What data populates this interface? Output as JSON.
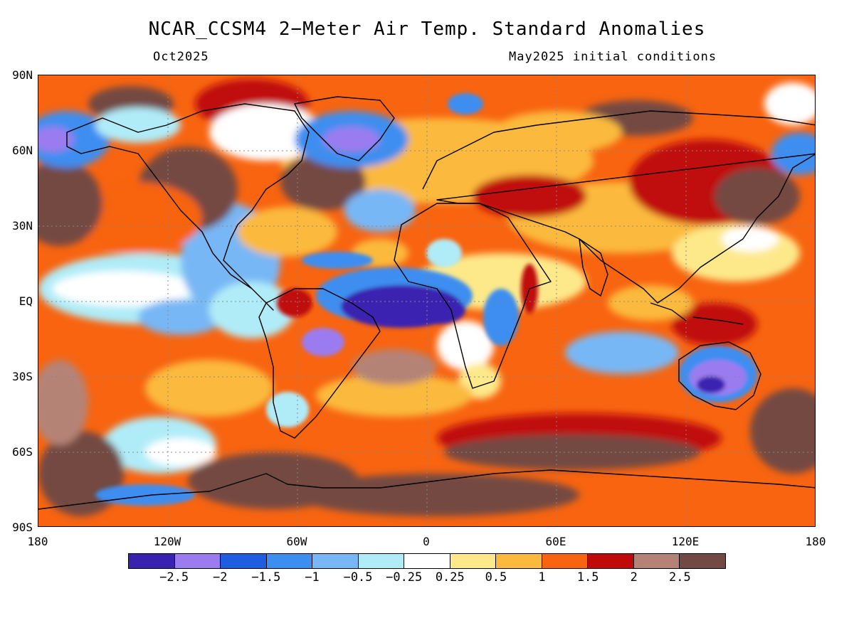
{
  "header": {
    "title": "NCAR_CCSM4 2−Meter Air Temp. Standard Anomalies",
    "valid_month": "Oct2025",
    "init": "May2025 initial conditions"
  },
  "axes": {
    "lat_labels": [
      "90N",
      "60N",
      "30N",
      "EQ",
      "30S",
      "60S",
      "90S"
    ],
    "lon_labels": [
      "180",
      "120W",
      "60W",
      "0",
      "60E",
      "120E",
      "180"
    ]
  },
  "legend": {
    "colors": [
      "#3a22b0",
      "#9b7bf0",
      "#1e5de0",
      "#3c8ef0",
      "#78b7f5",
      "#b0ecf8",
      "#ffffff",
      "#fde98a",
      "#fbba3c",
      "#f86410",
      "#c00a0a",
      "#b58376",
      "#734a43"
    ],
    "labels": [
      "−2.5",
      "−2",
      "−1.5",
      "−1",
      "−0.5",
      "−0.25",
      "0.25",
      "0.5",
      "1",
      "1.5",
      "2",
      "2.5"
    ]
  }
}
